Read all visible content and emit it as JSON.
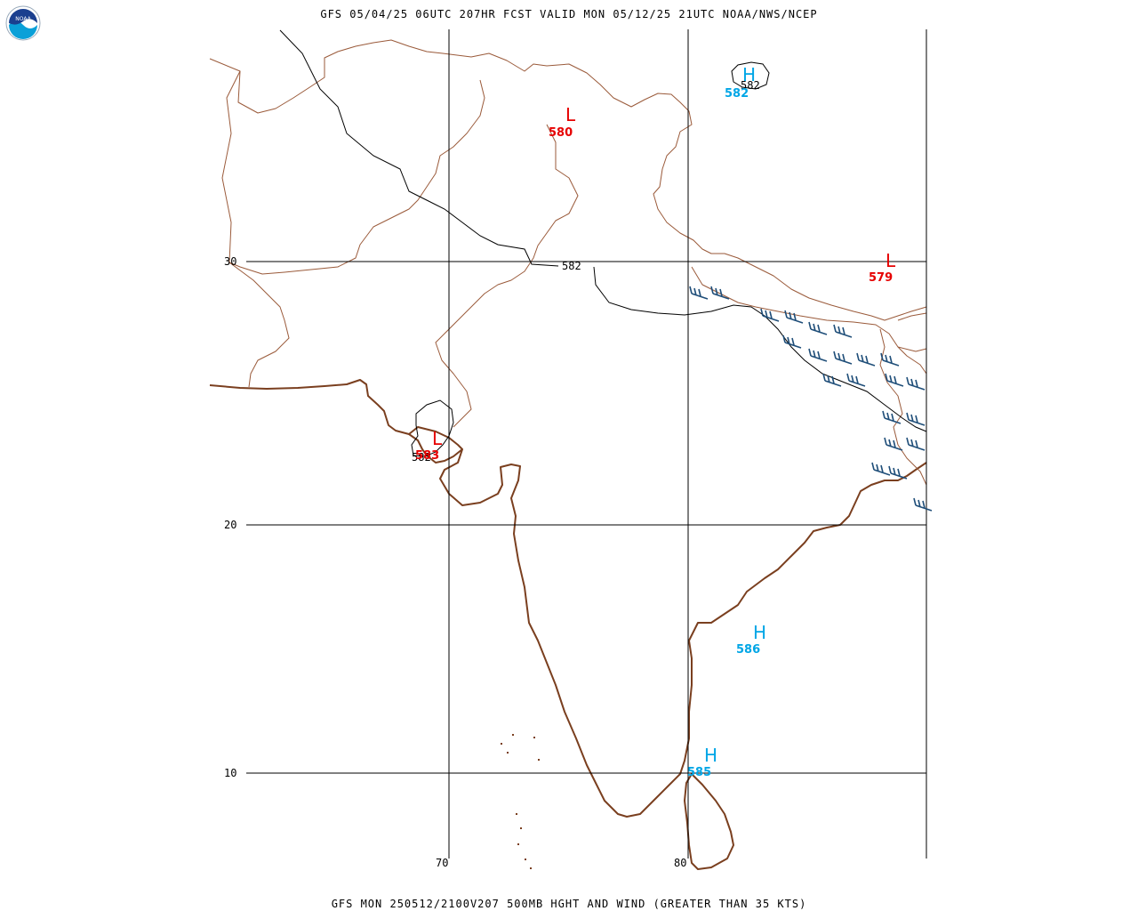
{
  "header": {
    "title": "GFS 05/04/25 06UTC 207HR FCST VALID MON 05/12/25 21UTC NOAA/NWS/NCEP",
    "logo_text": "NOAA"
  },
  "footer": {
    "title": "GFS MON 250512/2100V207 500MB HGHT AND WIND (GREATER THAN 35 KTS)"
  },
  "grid_labels": {
    "lat_30": "30",
    "lat_20": "20",
    "lat_10": "10",
    "lon_70": "70",
    "lon_80": "80"
  },
  "contour_labels": {
    "c1": "582",
    "c2": "582",
    "c3": "582"
  },
  "systems": [
    {
      "type": "L",
      "value": "580"
    },
    {
      "type": "L",
      "value": "579"
    },
    {
      "type": "L",
      "value": "583"
    },
    {
      "type": "H",
      "value": "582"
    },
    {
      "type": "H",
      "value": "586"
    },
    {
      "type": "H",
      "value": "585"
    }
  ],
  "colors": {
    "low": "#e60000",
    "high": "#00a6e6",
    "coastline": "#7a3f1f",
    "wind_barbs": "#1f4e79"
  }
}
